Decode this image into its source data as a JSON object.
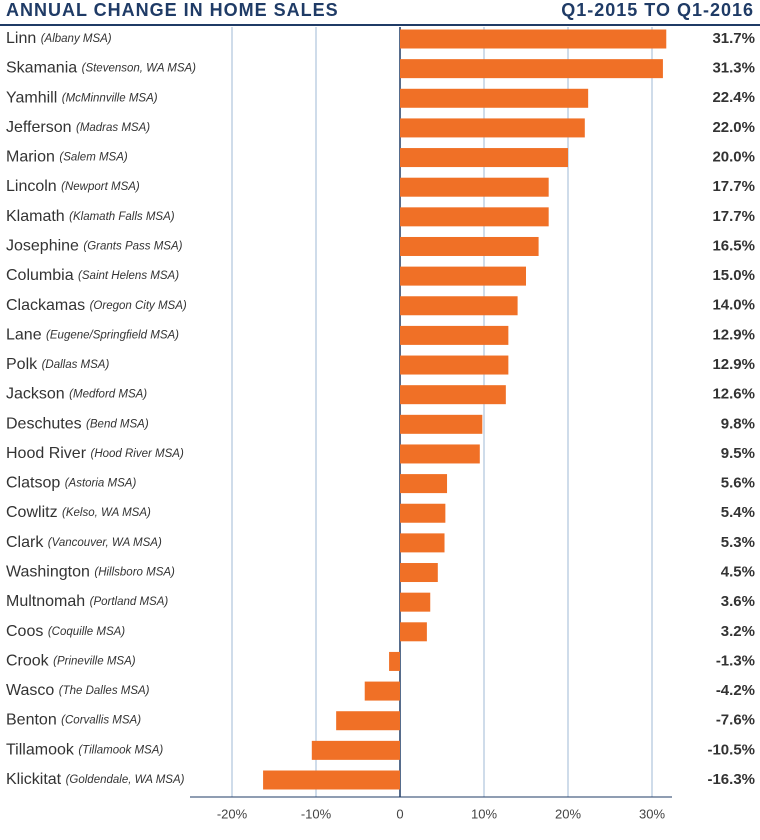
{
  "chart_data": {
    "type": "bar",
    "orientation": "horizontal",
    "title": "ANNUAL CHANGE IN HOME SALES",
    "subtitle": "Q1-2015 TO Q1-2016",
    "categories": [
      "Linn",
      "Skamania",
      "Yamhill",
      "Jefferson",
      "Marion",
      "Lincoln",
      "Klamath",
      "Josephine",
      "Columbia",
      "Clackamas",
      "Lane",
      "Polk",
      "Jackson",
      "Deschutes",
      "Hood River",
      "Clatsop",
      "Cowlitz",
      "Clark",
      "Washington",
      "Multnomah",
      "Coos",
      "Crook",
      "Wasco",
      "Benton",
      "Tillamook",
      "Klickitat"
    ],
    "sublabels": [
      "(Albany MSA)",
      "(Stevenson, WA MSA)",
      "(McMinnville MSA)",
      "(Madras MSA)",
      "(Salem MSA)",
      "(Newport MSA)",
      "(Klamath Falls MSA)",
      "(Grants Pass MSA)",
      "(Saint Helens MSA)",
      "(Oregon City MSA)",
      "(Eugene/Springfield MSA)",
      "(Dallas MSA)",
      "(Medford MSA)",
      "(Bend MSA)",
      "(Hood River MSA)",
      "(Astoria MSA)",
      "(Kelso, WA MSA)",
      "(Vancouver, WA MSA)",
      "(Hillsboro MSA)",
      "(Portland MSA)",
      "(Coquille MSA)",
      "(Prineville MSA)",
      "(The Dalles MSA)",
      "(Corvallis MSA)",
      "(Tillamook MSA)",
      "(Goldendale, WA MSA)"
    ],
    "values": [
      31.7,
      31.3,
      22.4,
      22.0,
      20.0,
      17.7,
      17.7,
      16.5,
      15.0,
      14.0,
      12.9,
      12.9,
      12.6,
      9.8,
      9.5,
      5.6,
      5.4,
      5.3,
      4.5,
      3.6,
      3.2,
      -1.3,
      -4.2,
      -7.6,
      -10.5,
      -16.3
    ],
    "value_labels": [
      "31.7%",
      "31.3%",
      "22.4%",
      "22.0%",
      "20.0%",
      "17.7%",
      "17.7%",
      "16.5%",
      "15.0%",
      "14.0%",
      "12.9%",
      "12.9%",
      "12.6%",
      "9.8%",
      "9.5%",
      "5.6%",
      "5.4%",
      "5.3%",
      "4.5%",
      "3.6%",
      "3.2%",
      "-1.3%",
      "-4.2%",
      "-7.6%",
      "-10.5%",
      "-16.3%"
    ],
    "color": "#f07026",
    "xlim": [
      -24,
      32
    ],
    "xticks": [
      {
        "value": -20,
        "label": "-20%"
      },
      {
        "value": -10,
        "label": "-10%"
      },
      {
        "value": 0,
        "label": "0"
      },
      {
        "value": 10,
        "label": "10%"
      },
      {
        "value": 20,
        "label": "20%"
      },
      {
        "value": 30,
        "label": "30%"
      }
    ],
    "grid": true
  }
}
